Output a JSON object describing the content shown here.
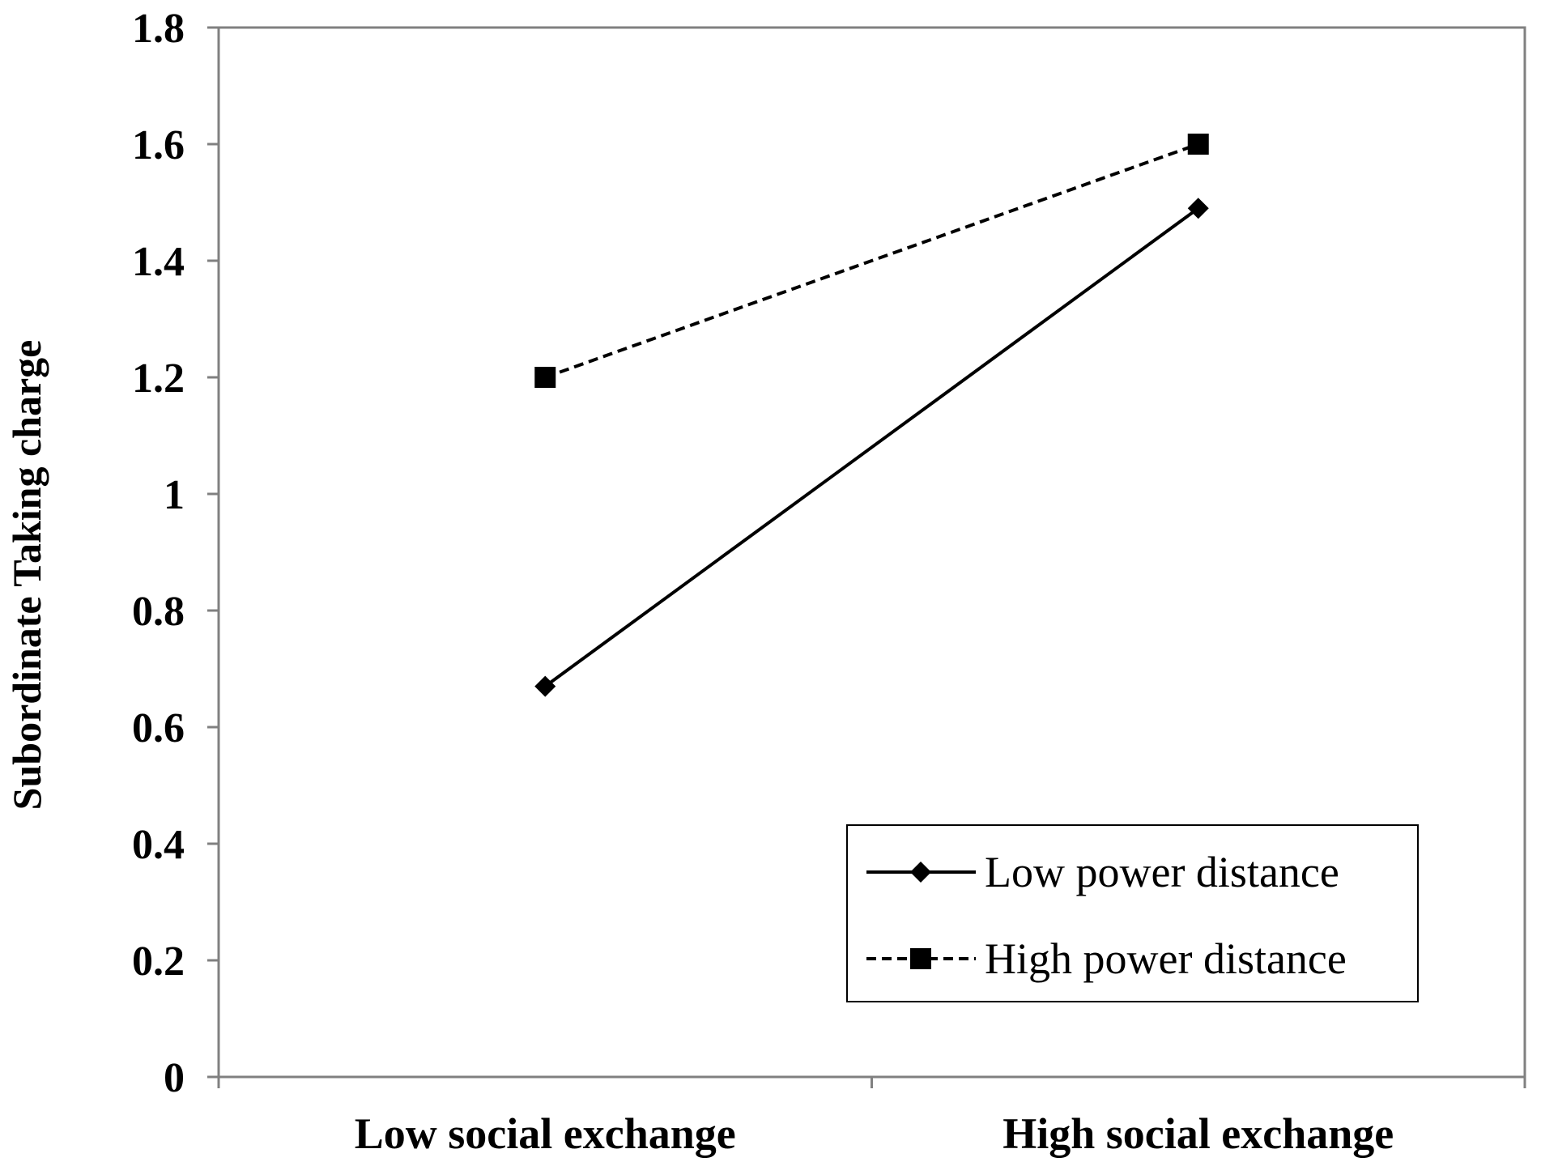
{
  "chart_data": {
    "type": "line",
    "categories": [
      "Low social exchange",
      "High social exchange"
    ],
    "series": [
      {
        "name": "Low power distance",
        "values": [
          0.67,
          1.49
        ],
        "line_style": "solid",
        "marker": "diamond",
        "color": "#000000"
      },
      {
        "name": "High power distance",
        "values": [
          1.2,
          1.6
        ],
        "line_style": "dashed",
        "marker": "square",
        "color": "#000000"
      }
    ],
    "title": "",
    "xlabel": "",
    "ylabel": "Subordinate Taking charge",
    "ylim": [
      0,
      1.8
    ],
    "yticks": [
      "0",
      "0.2",
      "0.4",
      "0.6",
      "0.8",
      "1",
      "1.2",
      "1.4",
      "1.6",
      "1.8"
    ],
    "grid": false,
    "legend_position": "bottom-right"
  }
}
